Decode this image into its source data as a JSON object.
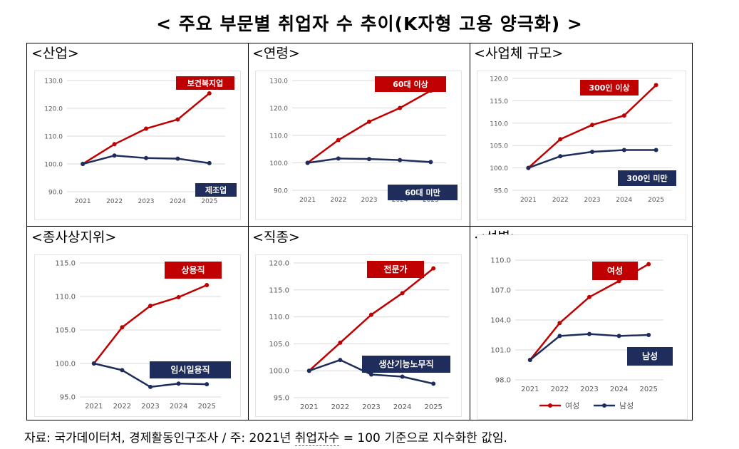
{
  "title": "< 주요 부문별 취업자 수 추이(K자형 고용 양극화) >",
  "footnote": {
    "prefix": "자료: 국가데이터처, 경제활동인구조사 / 주: 2021년 ",
    "underlined": "취업자수",
    "suffix": " = 100 기준으로 지수화한 값임."
  },
  "colors": {
    "high": "#c00000",
    "low": "#1f2d5c",
    "grid": "#d9d9d9",
    "axis": "#595959"
  },
  "chart_data": [
    {
      "id": "industry",
      "label": "<산업>",
      "type": "line",
      "categories": [
        "2021",
        "2022",
        "2023",
        "2024",
        "2025"
      ],
      "yticks": [
        "130.0",
        "120.0",
        "110.0",
        "100.0",
        "90.0"
      ],
      "ylim": [
        90,
        130
      ],
      "series": [
        {
          "name": "보건복지업",
          "values": [
            100.0,
            107.1,
            112.7,
            116.0,
            125.4
          ]
        },
        {
          "name": "제조업",
          "values": [
            100.0,
            103.0,
            102.1,
            101.9,
            100.3
          ]
        }
      ]
    },
    {
      "id": "age",
      "label": "<연령>",
      "type": "line",
      "categories": [
        "2021",
        "2022",
        "2023",
        "2024",
        "2025"
      ],
      "yticks": [
        "130.0",
        "120.0",
        "110.0",
        "100.0",
        "90.0"
      ],
      "ylim": [
        90,
        130
      ],
      "series": [
        {
          "name": "60대 이상",
          "values": [
            100.0,
            108.3,
            115.0,
            120.0,
            126.3
          ]
        },
        {
          "name": "60대 미만",
          "values": [
            100.0,
            101.6,
            101.4,
            101.0,
            100.3
          ]
        }
      ]
    },
    {
      "id": "size",
      "label": "<사업체 규모>",
      "type": "line",
      "categories": [
        "2021",
        "2022",
        "2023",
        "2024",
        "2025"
      ],
      "yticks": [
        "120.0",
        "115.0",
        "110.0",
        "105.0",
        "100.0",
        "95.0"
      ],
      "ylim": [
        95,
        120
      ],
      "series": [
        {
          "name": "300인 이상",
          "values": [
            100.0,
            106.4,
            109.6,
            111.7,
            118.5
          ]
        },
        {
          "name": "300인 미만",
          "values": [
            100.0,
            102.6,
            103.6,
            104.0,
            104.0
          ]
        }
      ]
    },
    {
      "id": "status",
      "label": "<종사상지위>",
      "type": "line",
      "categories": [
        "2021",
        "2022",
        "2023",
        "2024",
        "2025"
      ],
      "yticks": [
        "115.0",
        "110.0",
        "105.0",
        "100.0",
        "95.0"
      ],
      "ylim": [
        95,
        115
      ],
      "series": [
        {
          "name": "상용직",
          "values": [
            100.0,
            105.4,
            108.6,
            109.9,
            111.7
          ]
        },
        {
          "name": "임시일용직",
          "values": [
            100.0,
            99.0,
            96.5,
            97.0,
            96.9
          ]
        }
      ]
    },
    {
      "id": "occupation",
      "label": "<직종>",
      "type": "line",
      "categories": [
        "2021",
        "2022",
        "2023",
        "2024",
        "2025"
      ],
      "yticks": [
        "120.0",
        "115.0",
        "110.0",
        "105.0",
        "100.0",
        "95.0"
      ],
      "ylim": [
        95,
        120
      ],
      "series": [
        {
          "name": "전문가",
          "values": [
            100.0,
            105.2,
            110.4,
            114.4,
            119.0
          ]
        },
        {
          "name": "생산기능노무직",
          "values": [
            100.0,
            102.0,
            99.3,
            98.9,
            97.6
          ]
        }
      ]
    },
    {
      "id": "gender",
      "label": "<성별>",
      "type": "line",
      "categories": [
        "2021",
        "2022",
        "2023",
        "2024",
        "2025"
      ],
      "yticks": [
        "110.0",
        "107.0",
        "104.0",
        "101.0",
        "98.0"
      ],
      "ylim": [
        98,
        110
      ],
      "legend": "bottom",
      "series": [
        {
          "name": "여성",
          "values": [
            100.0,
            103.7,
            106.3,
            107.9,
            109.6
          ]
        },
        {
          "name": "남성",
          "values": [
            100.0,
            102.4,
            102.6,
            102.4,
            102.5
          ]
        }
      ]
    }
  ]
}
